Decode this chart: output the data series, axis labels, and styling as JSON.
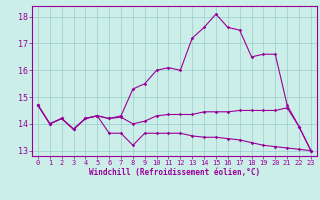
{
  "title": "",
  "xlabel": "Windchill (Refroidissement éolien,°C)",
  "bg_color": "#cceee8",
  "grid_color": "#99cccc",
  "line_color": "#990099",
  "xlim": [
    -0.5,
    23.5
  ],
  "ylim": [
    12.8,
    18.4
  ],
  "yticks": [
    13,
    14,
    15,
    16,
    17,
    18
  ],
  "xticks": [
    0,
    1,
    2,
    3,
    4,
    5,
    6,
    7,
    8,
    9,
    10,
    11,
    12,
    13,
    14,
    15,
    16,
    17,
    18,
    19,
    20,
    21,
    22,
    23
  ],
  "line1_x": [
    0,
    1,
    2,
    3,
    4,
    5,
    6,
    7,
    8,
    9,
    10,
    11,
    12,
    13,
    14,
    15,
    16,
    17,
    18,
    19,
    20,
    21,
    22,
    23
  ],
  "line1_y": [
    14.7,
    14.0,
    14.2,
    13.8,
    14.2,
    14.3,
    13.65,
    13.65,
    13.2,
    13.65,
    13.65,
    13.65,
    13.65,
    13.55,
    13.5,
    13.5,
    13.45,
    13.4,
    13.3,
    13.2,
    13.15,
    13.1,
    13.05,
    13.0
  ],
  "line2_x": [
    0,
    1,
    2,
    3,
    4,
    5,
    6,
    7,
    8,
    9,
    10,
    11,
    12,
    13,
    14,
    15,
    16,
    17,
    18,
    19,
    20,
    21,
    22,
    23
  ],
  "line2_y": [
    14.7,
    14.0,
    14.2,
    13.8,
    14.2,
    14.3,
    14.2,
    14.25,
    14.0,
    14.1,
    14.3,
    14.35,
    14.35,
    14.35,
    14.45,
    14.45,
    14.45,
    14.5,
    14.5,
    14.5,
    14.5,
    14.6,
    13.9,
    13.0
  ],
  "line3_x": [
    0,
    1,
    2,
    3,
    4,
    5,
    6,
    7,
    8,
    9,
    10,
    11,
    12,
    13,
    14,
    15,
    16,
    17,
    18,
    19,
    20,
    21,
    22,
    23
  ],
  "line3_y": [
    14.7,
    14.0,
    14.2,
    13.8,
    14.2,
    14.3,
    14.2,
    14.3,
    15.3,
    15.5,
    16.0,
    16.1,
    16.0,
    17.2,
    17.6,
    18.1,
    17.6,
    17.5,
    16.5,
    16.6,
    16.6,
    14.7,
    13.9,
    13.0
  ],
  "marker": "D",
  "marker_size": 1.8,
  "line_width": 0.8,
  "xlabel_fontsize": 5.5,
  "tick_fontsize": 5.0,
  "ytick_fontsize": 6.0
}
